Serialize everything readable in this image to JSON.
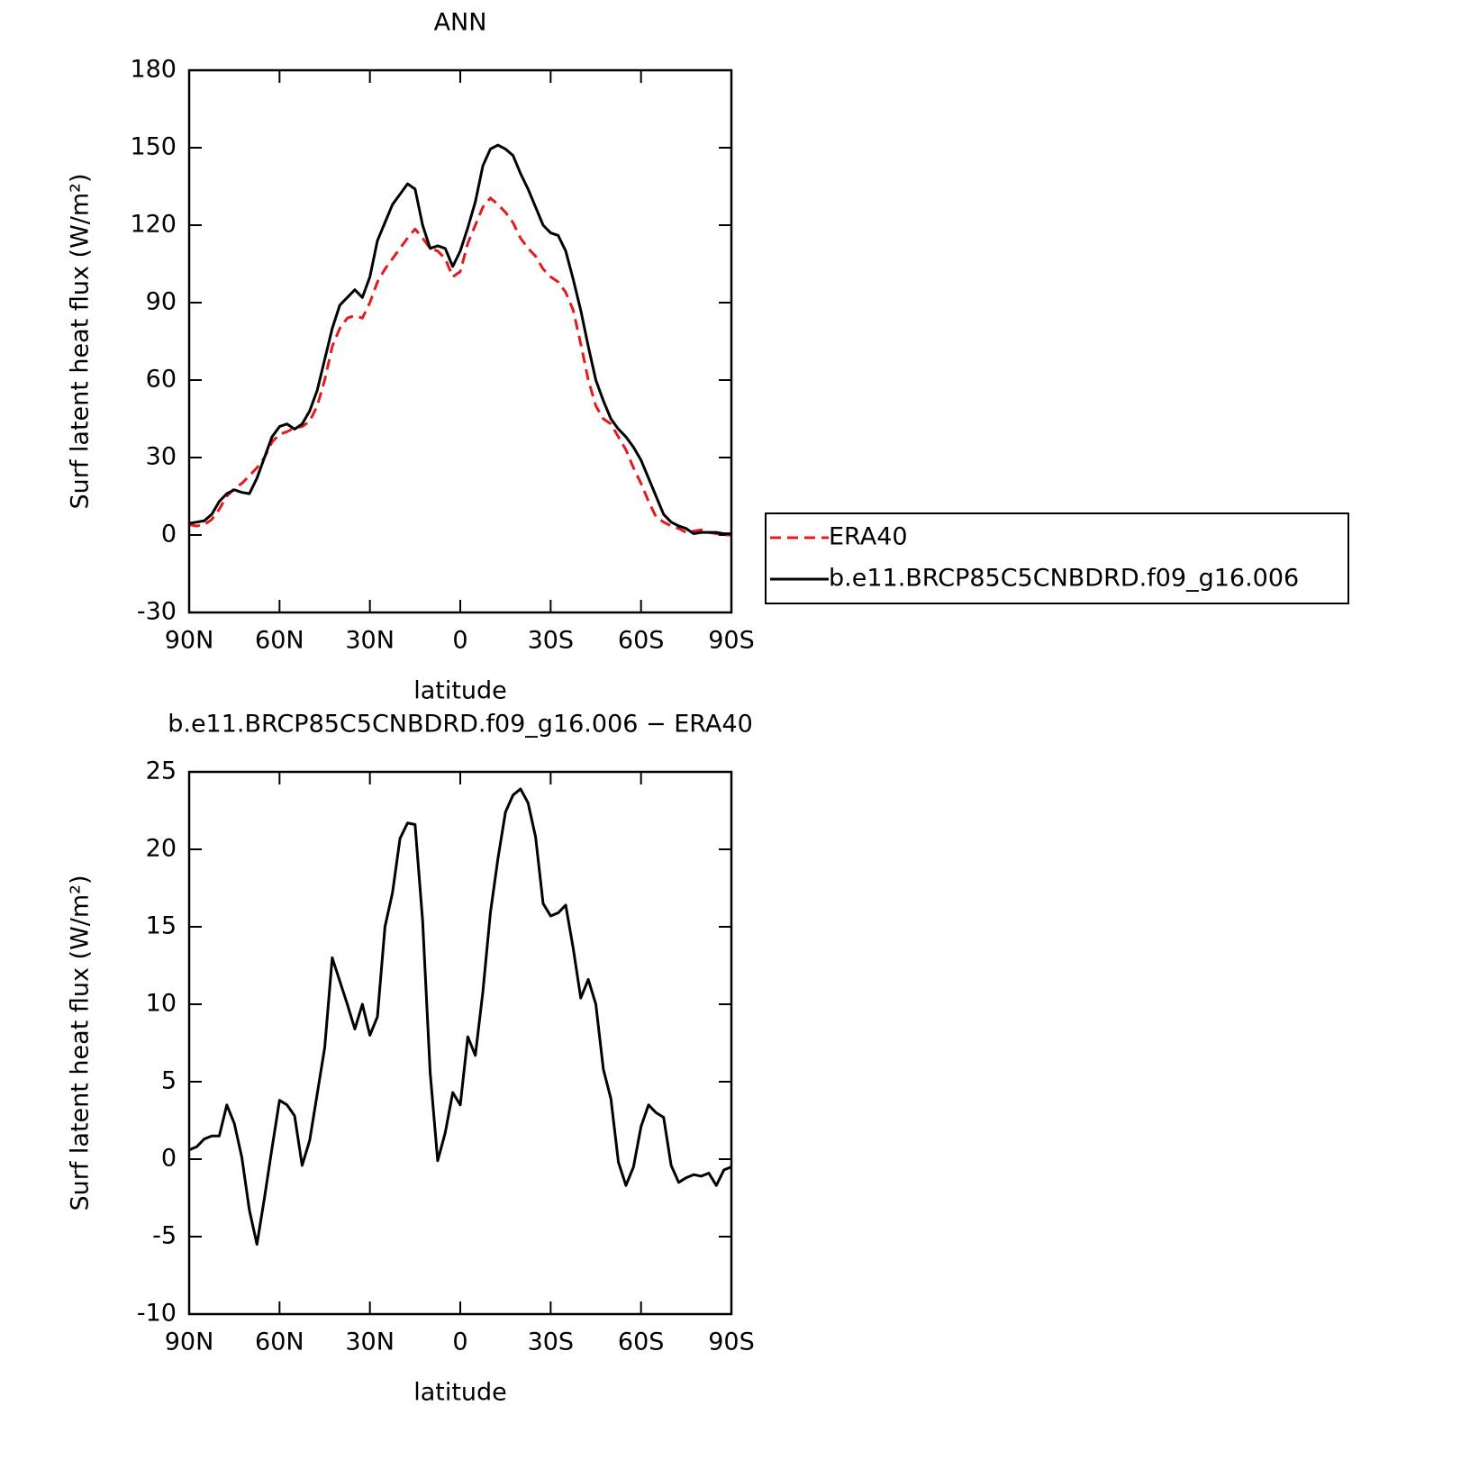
{
  "chart_data": [
    {
      "type": "line",
      "title": "ANN",
      "xlabel": "latitude",
      "ylabel": "Surf latent heat flux (W/m²)",
      "x": [
        90,
        87.5,
        85,
        82.5,
        80,
        77.5,
        75,
        72.5,
        70,
        67.5,
        65,
        62.5,
        60,
        57.5,
        55,
        52.5,
        50,
        47.5,
        45,
        42.5,
        40,
        37.5,
        35,
        32.5,
        30,
        27.5,
        25,
        22.5,
        20,
        17.5,
        15,
        12.5,
        10,
        7.5,
        5,
        2.5,
        0,
        -2.5,
        -5,
        -7.5,
        -10,
        -12.5,
        -15,
        -17.5,
        -20,
        -22.5,
        -25,
        -27.5,
        -30,
        -32.5,
        -35,
        -37.5,
        -40,
        -42.5,
        -45,
        -47.5,
        -50,
        -52.5,
        -55,
        -57.5,
        -60,
        -62.5,
        -65,
        -67.5,
        -70,
        -72.5,
        -75,
        -77.5,
        -80,
        -82.5,
        -85,
        -87.5,
        -90
      ],
      "series": [
        {
          "name": "ERA40",
          "color": "#e41a1c",
          "style": "dashed",
          "values": [
            4,
            3.5,
            4,
            6,
            10,
            15,
            18,
            20,
            23,
            26,
            30,
            36,
            39,
            40,
            41.5,
            42,
            44,
            50,
            60,
            73,
            80,
            84,
            85,
            84,
            90,
            98,
            103,
            107,
            111,
            115,
            118.5,
            115,
            111,
            110,
            107,
            100,
            102,
            113,
            120,
            127,
            130.5,
            128,
            125,
            121,
            115,
            111,
            108,
            103,
            100,
            98,
            94,
            87,
            74,
            60,
            50,
            45,
            43,
            38,
            33,
            26,
            20,
            13,
            7,
            5,
            3.5,
            2.5,
            1,
            1.5,
            2,
            1,
            0.5,
            0,
            0
          ]
        },
        {
          "name": "b.e11.BRCP85C5CNBDRD.f09_g16.006",
          "color": "#000000",
          "style": "solid",
          "values": [
            4.5,
            5,
            5.5,
            8,
            13,
            16,
            17.5,
            16.5,
            16,
            22,
            30,
            38,
            42,
            43,
            41,
            43,
            48,
            56,
            68,
            80,
            89,
            92,
            95,
            92,
            100,
            114,
            121,
            128,
            132,
            136,
            134,
            120,
            111,
            112,
            111,
            104,
            110,
            119,
            129,
            143,
            149.5,
            151,
            149.5,
            147,
            140,
            134,
            127,
            120,
            117,
            116,
            110,
            99,
            87,
            73,
            60,
            52,
            45,
            41,
            38,
            34,
            29,
            22,
            15,
            8,
            5,
            3.5,
            2.5,
            0.5,
            1,
            1,
            1,
            0.5,
            0.5
          ]
        }
      ],
      "xlim": [
        90,
        -90
      ],
      "ylim": [
        -30,
        180
      ],
      "xticks": [
        {
          "value": 90,
          "label": "90N"
        },
        {
          "value": 60,
          "label": "60N"
        },
        {
          "value": 30,
          "label": "30N"
        },
        0,
        {
          "value": -30,
          "label": "30S"
        },
        {
          "value": -60,
          "label": "60S"
        },
        {
          "value": -90,
          "label": "90S"
        }
      ],
      "yticks": [
        -30,
        0,
        30,
        60,
        90,
        120,
        150,
        180
      ]
    },
    {
      "type": "line",
      "title": "b.e11.BRCP85C5CNBDRD.f09_g16.006 − ERA40",
      "xlabel": "latitude",
      "ylabel": "Surf latent heat flux (W/m²)",
      "x": [
        90,
        87.5,
        85,
        82.5,
        80,
        77.5,
        75,
        72.5,
        70,
        67.5,
        65,
        62.5,
        60,
        57.5,
        55,
        52.5,
        50,
        47.5,
        45,
        42.5,
        40,
        37.5,
        35,
        32.5,
        30,
        27.5,
        25,
        22.5,
        20,
        17.5,
        15,
        12.5,
        10,
        7.5,
        5,
        2.5,
        0,
        -2.5,
        -5,
        -7.5,
        -10,
        -12.5,
        -15,
        -17.5,
        -20,
        -22.5,
        -25,
        -27.5,
        -30,
        -32.5,
        -35,
        -37.5,
        -40,
        -42.5,
        -45,
        -47.5,
        -50,
        -52.5,
        -55,
        -57.5,
        -60,
        -62.5,
        -65,
        -67.5,
        -70,
        -72.5,
        -75,
        -77.5,
        -80,
        -82.5,
        -85,
        -87.5,
        -90
      ],
      "series": [
        {
          "color": "#000000",
          "style": "solid",
          "values": [
            0.6,
            0.8,
            1.3,
            1.5,
            1.5,
            3.5,
            2.3,
            0.1,
            -3.3,
            -5.5,
            -2.5,
            0.7,
            3.8,
            3.5,
            2.8,
            -0.4,
            1.2,
            4.2,
            7.2,
            13,
            11.5,
            10,
            8.4,
            10,
            8,
            9.2,
            15,
            17.2,
            20.7,
            21.7,
            21.6,
            15.4,
            5.6,
            -0.1,
            1.7,
            4.3,
            3.5,
            7.9,
            6.7,
            10.8,
            15.9,
            19.4,
            22.4,
            23.5,
            23.9,
            23,
            20.8,
            16.5,
            15.7,
            15.9,
            16.4,
            13.6,
            10.4,
            11.6,
            10,
            5.8,
            3.9,
            -0.2,
            -1.7,
            -0.5,
            2.1,
            3.5,
            3,
            2.7,
            -0.4,
            -1.5,
            -1.2,
            -1,
            -1.1,
            -0.9,
            -1.7,
            -0.7,
            -0.5
          ]
        }
      ],
      "xlim": [
        90,
        -90
      ],
      "ylim": [
        -10,
        25
      ],
      "xticks": [
        {
          "value": 90,
          "label": "90N"
        },
        {
          "value": 60,
          "label": "60N"
        },
        {
          "value": 30,
          "label": "30N"
        },
        0,
        {
          "value": -30,
          "label": "30S"
        },
        {
          "value": -60,
          "label": "60S"
        },
        {
          "value": -90,
          "label": "90S"
        }
      ],
      "yticks": [
        -10,
        -5,
        0,
        5,
        10,
        15,
        20,
        25
      ]
    }
  ]
}
